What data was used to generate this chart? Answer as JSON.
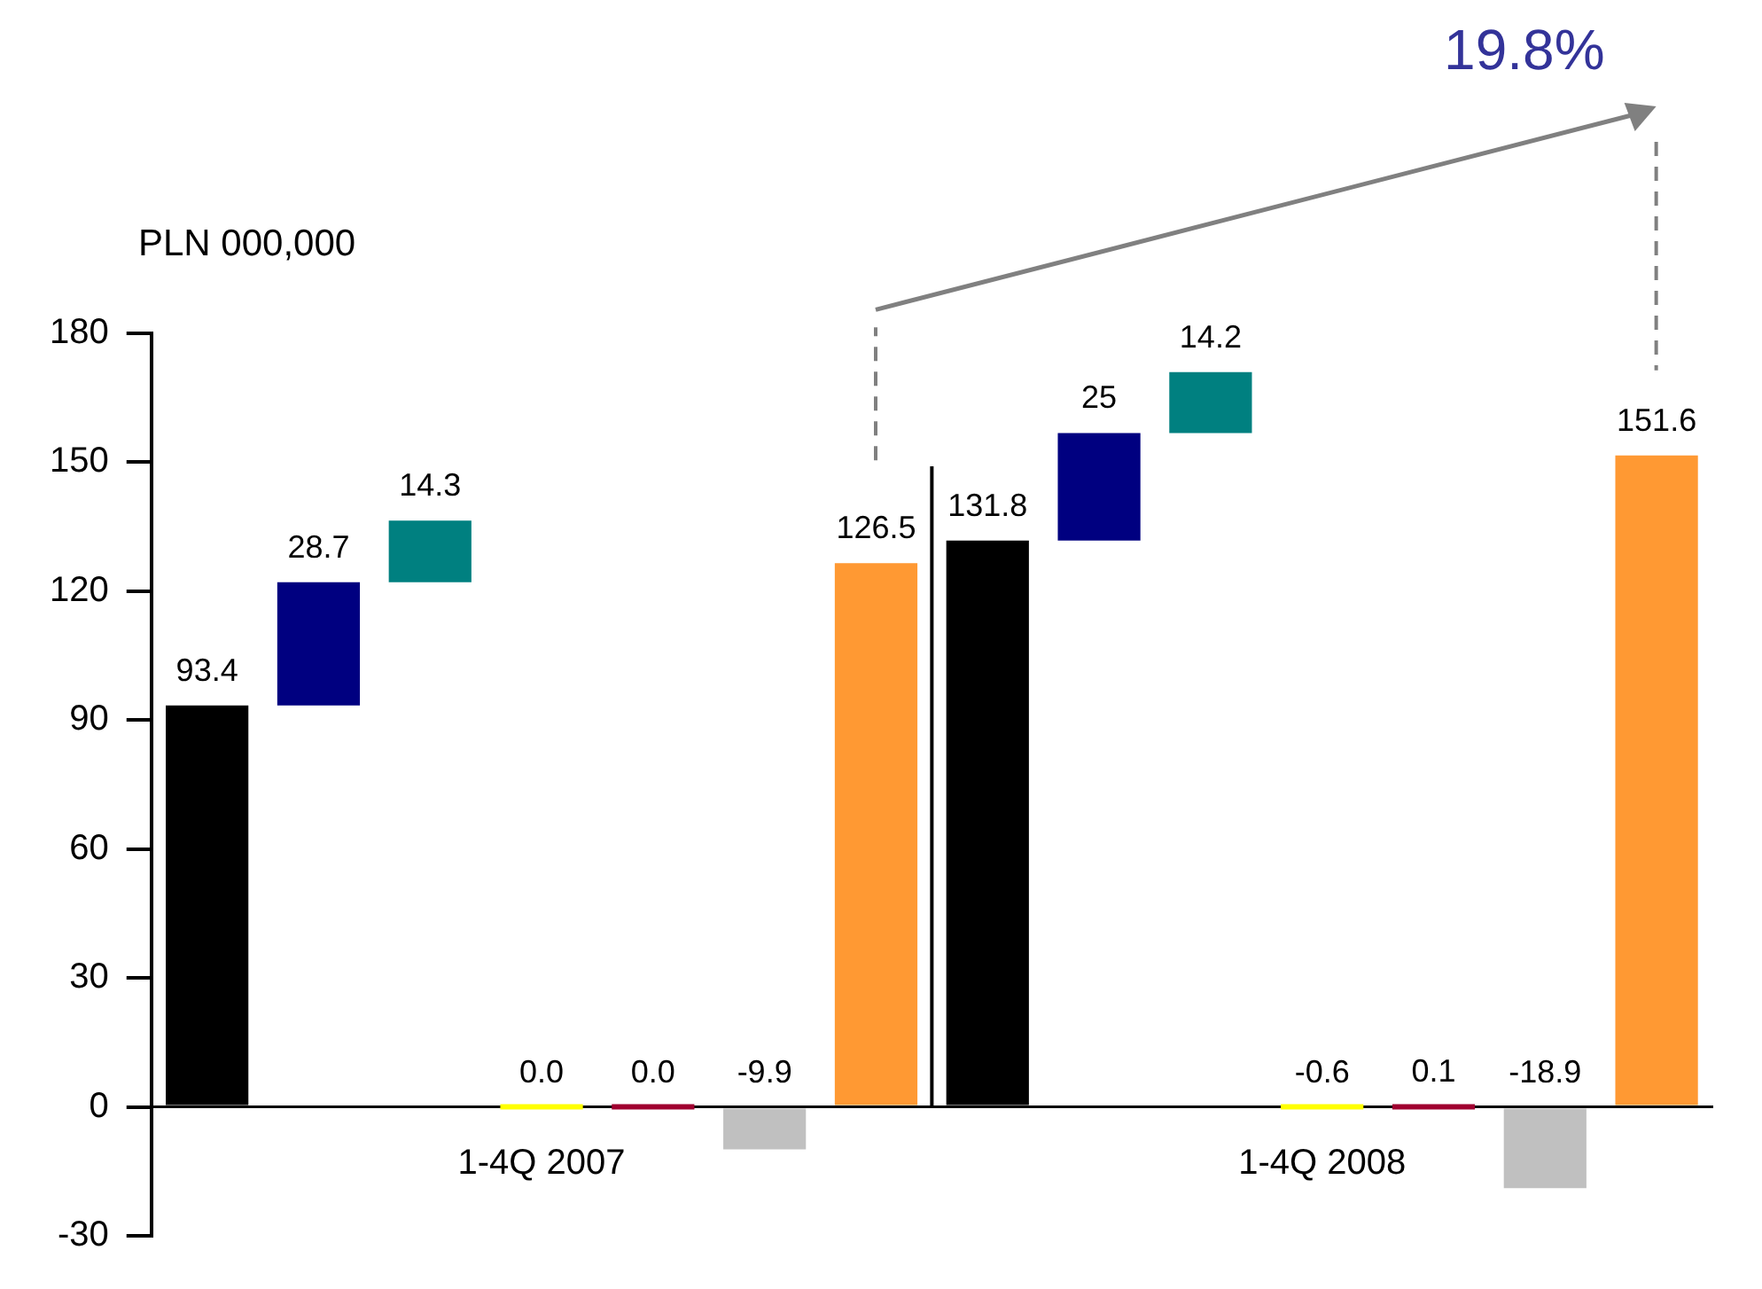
{
  "chart_data": {
    "type": "bar",
    "ylabel": "PLN 000,000",
    "categories": [
      null,
      null,
      null,
      "1-4Q 2007",
      null,
      null,
      null,
      null,
      null,
      null,
      "1-4Q 2008",
      null,
      null,
      null
    ],
    "values": [
      93.4,
      28.7,
      14.3,
      0.0,
      0.0,
      -9.9,
      126.5,
      131.8,
      25,
      14.2,
      -0.6,
      0.1,
      -18.9,
      151.6
    ],
    "base": [
      0,
      93.4,
      122.1,
      0,
      0,
      0,
      0,
      0,
      131.8,
      156.8,
      0,
      0,
      0,
      0
    ],
    "colors": [
      "#000000",
      "#000080",
      "#008080",
      "#ffff00",
      "#a00030",
      "#c0c0c0",
      "#ff9933",
      "#000000",
      "#000080",
      "#008080",
      "#ffff00",
      "#a00030",
      "#c0c0c0",
      "#ff9933"
    ],
    "value_labels": [
      "93.4",
      "28.7",
      "14.3",
      "0.0",
      "0.0",
      "-9.9",
      "126.5",
      "131.8",
      "25",
      "14.2",
      "-0.6",
      "0.1",
      "-18.9",
      "151.6"
    ],
    "ylim": [
      -30,
      180
    ],
    "yticks": [
      -30,
      0,
      30,
      60,
      90,
      120,
      150,
      180
    ],
    "annotations": [
      "19.8%"
    ]
  }
}
